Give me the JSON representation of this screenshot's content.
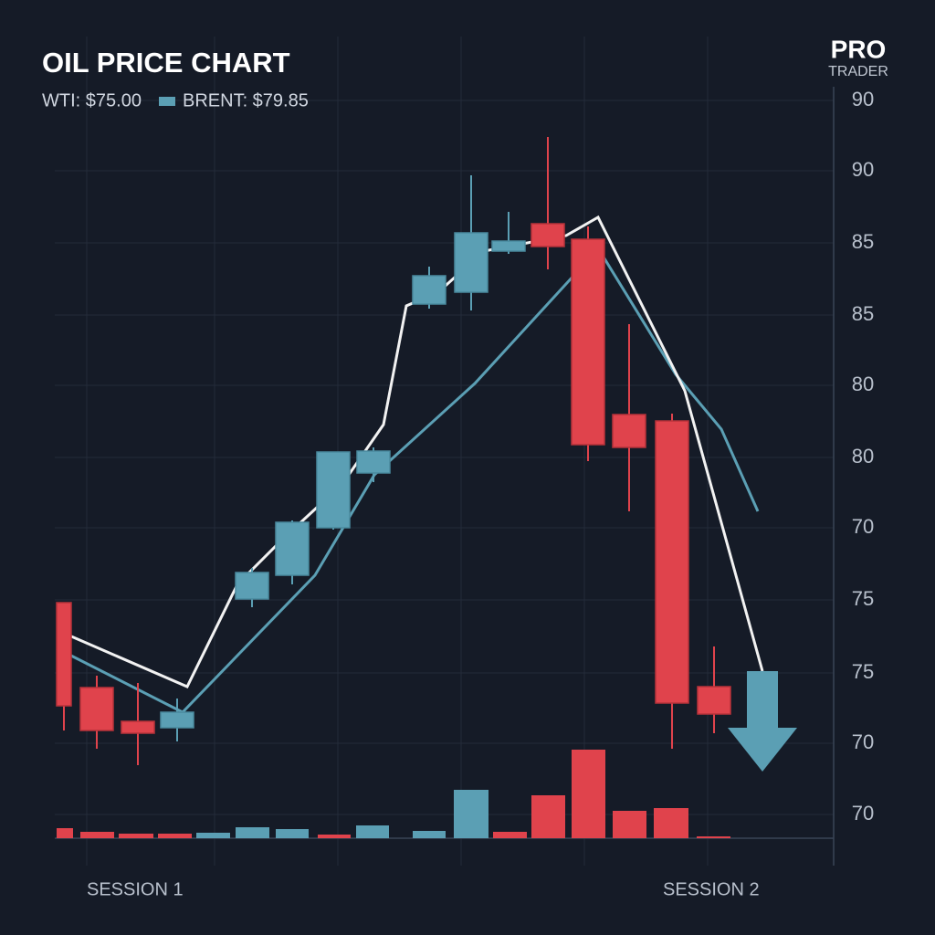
{
  "header": {
    "title": "OIL PRICE CHART",
    "legend": [
      "WTI: $75.00",
      "BRENT: $79.85"
    ],
    "logo": [
      "PRO",
      "TRADER"
    ]
  },
  "axis_labels": [
    "90",
    "90",
    "85",
    "85",
    "80",
    "80",
    "70",
    "75",
    "75",
    "70",
    "70"
  ],
  "sessions": [
    "SESSION 1",
    "SESSION 2"
  ]
}
